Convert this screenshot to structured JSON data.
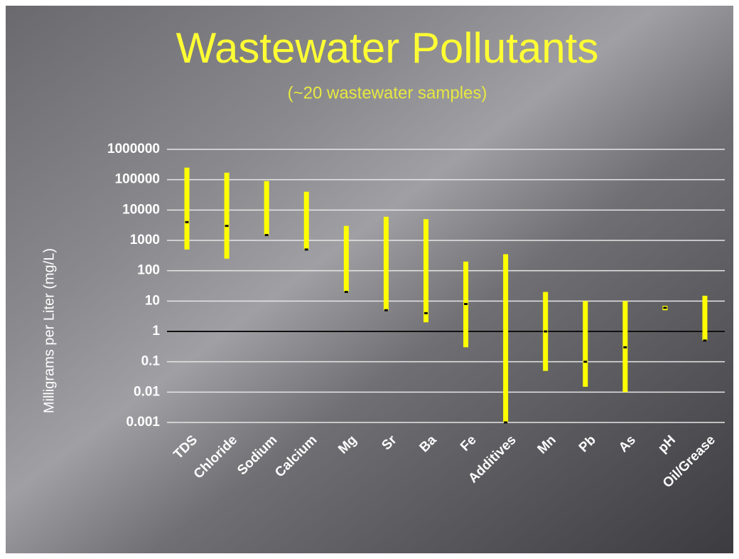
{
  "chart_data": {
    "type": "range",
    "title": "Wastewater Pollutants",
    "subtitle": "(~20 wastewater samples)",
    "y_label": "Milligrams per Liter (mg/L)",
    "categories": [
      "TDS",
      "Chloride",
      "Sodium",
      "Calcium",
      "Mg",
      "Sr",
      "Ba",
      "Fe",
      "Additives",
      "Mn",
      "Pb",
      "As",
      "pH",
      "Oil/Grease"
    ],
    "low": [
      500,
      250,
      1500,
      500,
      20,
      5,
      2,
      0.3,
      0.001,
      0.05,
      0.015,
      0.01,
      5,
      0.5
    ],
    "high": [
      250000,
      170000,
      90000,
      40000,
      3000,
      6000,
      5000,
      200,
      350,
      20,
      10,
      10,
      7,
      15
    ],
    "median": [
      4000,
      3000,
      1500,
      500,
      20,
      5,
      4,
      8,
      0.001,
      1,
      0.1,
      0.3,
      6,
      0.5
    ],
    "color": "#ffff00",
    "median_color": "#111111",
    "log_y": true,
    "ylim": [
      0.001,
      1000000
    ],
    "yticks": [
      0.001,
      0.01,
      0.1,
      1,
      10,
      100,
      1000,
      10000,
      100000,
      1000000
    ],
    "grid": true,
    "axis_line_at": 1
  }
}
